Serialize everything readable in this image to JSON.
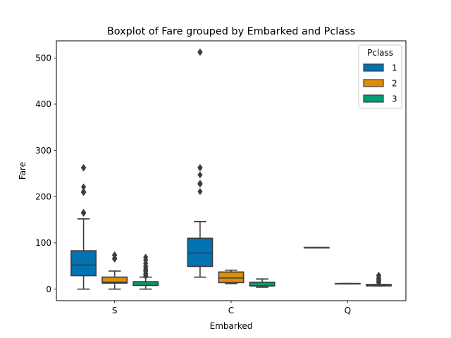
{
  "chart_data": {
    "type": "boxplot",
    "title": "Boxplot of Fare grouped by Embarked and Pclass",
    "xlabel": "Embarked",
    "ylabel": "Fare",
    "categories": [
      "S",
      "C",
      "Q"
    ],
    "hue_title": "Pclass",
    "ylim": [
      -25,
      537
    ],
    "yticks": [
      0,
      100,
      200,
      300,
      400,
      500
    ],
    "legend_position": "top-right",
    "grid": false,
    "series": [
      {
        "name": "1",
        "color": "#0173b2",
        "boxes": [
          {
            "category": "S",
            "min": 0,
            "q1": 29,
            "median": 52,
            "q3": 83,
            "max": 152,
            "outliers": [
              164,
              166,
              209,
              211,
              221,
              262,
              263
            ]
          },
          {
            "category": "C",
            "min": 26,
            "q1": 49,
            "median": 78,
            "q3": 110,
            "max": 146,
            "outliers": [
              211,
              227,
              229,
              247,
              262,
              263,
              512,
              513
            ]
          },
          {
            "category": "Q",
            "min": 90,
            "q1": 90,
            "median": 90,
            "q3": 90,
            "max": 90,
            "outliers": []
          }
        ]
      },
      {
        "name": "2",
        "color": "#de8f05",
        "boxes": [
          {
            "category": "S",
            "min": 0,
            "q1": 13,
            "median": 15,
            "q3": 26,
            "max": 39,
            "outliers": [
              65,
              67,
              73,
              74
            ]
          },
          {
            "category": "C",
            "min": 12,
            "q1": 14,
            "median": 24,
            "q3": 37,
            "max": 41,
            "outliers": []
          },
          {
            "category": "Q",
            "min": 12,
            "q1": 12,
            "median": 12,
            "q3": 12,
            "max": 12,
            "outliers": []
          }
        ]
      },
      {
        "name": "3",
        "color": "#029e73",
        "boxes": [
          {
            "category": "S",
            "min": 0,
            "q1": 8,
            "median": 8,
            "q3": 16,
            "max": 26,
            "outliers": [
              28,
              31,
              34,
              39,
              42,
              46,
              50,
              56,
              63,
              69
            ]
          },
          {
            "category": "C",
            "min": 4,
            "q1": 7,
            "median": 7,
            "q3": 15,
            "max": 22,
            "outliers": []
          },
          {
            "category": "Q",
            "min": 7,
            "q1": 7,
            "median": 8,
            "q3": 10,
            "max": 10,
            "outliers": [
              14,
              16,
              19,
              22,
              24,
              29,
              30
            ]
          }
        ]
      }
    ]
  }
}
